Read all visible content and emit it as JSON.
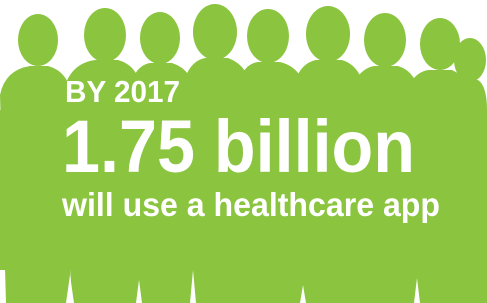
{
  "infographic": {
    "year_line": "BY 2017",
    "headline": "1.75 billion",
    "subline": "will use a healthcare app"
  }
}
